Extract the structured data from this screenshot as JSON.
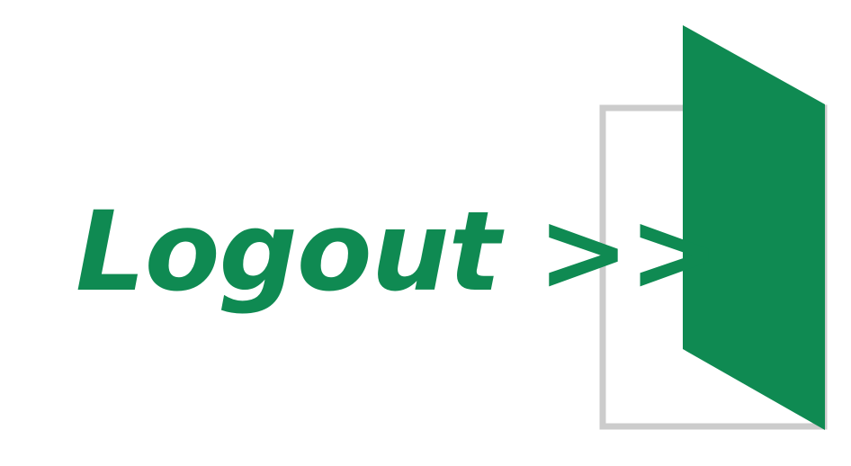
{
  "logout": {
    "label": "Logout >>",
    "icon": "open-door-exit-icon"
  },
  "colors": {
    "brand": "#0f8a52",
    "door_frame": "#cccccc",
    "background": "#ffffff"
  }
}
